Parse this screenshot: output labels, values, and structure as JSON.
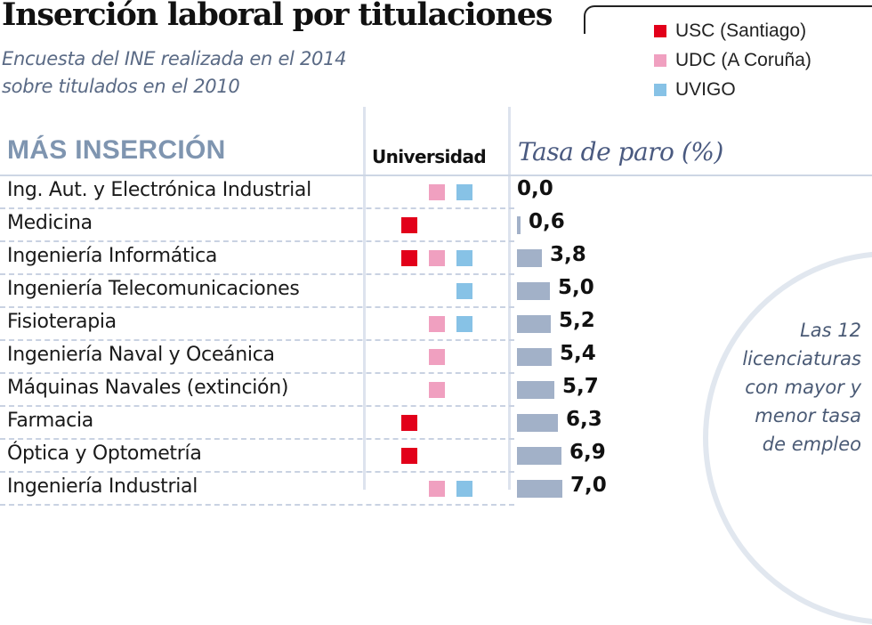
{
  "header": {
    "title": "Inserción laboral por titulaciones",
    "subtitle_lines": [
      "Encuesta del INE realizada en el 2014",
      "sobre titulados en el 2010"
    ]
  },
  "legend": [
    {
      "label": "USC (Santiago)",
      "key": "usc",
      "color": "#e2001a"
    },
    {
      "label": "UDC (A Coruña)",
      "key": "udc",
      "color": "#f0a0c0"
    },
    {
      "label": "UVIGO",
      "key": "uvigo",
      "color": "#87c2e6"
    }
  ],
  "table": {
    "section_title": "MÁS INSERCIÓN",
    "university_header": "Universidad",
    "rate_header": "Tasa de paro (%)"
  },
  "note": {
    "lines": [
      "Las 12",
      "licenciaturas",
      "con mayor y",
      "menor tasa",
      "de empleo"
    ]
  },
  "colors": {
    "usc": "#e2001a",
    "udc": "#f0a0c0",
    "uvigo": "#87c2e6",
    "bar": "#a2b1c8",
    "section_title": "#7f95b0"
  },
  "chart_data": {
    "type": "bar",
    "orientation": "horizontal",
    "title": "Inserción laboral por titulaciones",
    "subtitle": "Encuesta del INE realizada en el 2014 sobre titulados en el 2010",
    "xlabel": "Tasa de paro (%)",
    "ylabel": "",
    "section": "MÁS INSERCIÓN",
    "grid": false,
    "legend_position": "top-right",
    "categories": [
      "Ing. Aut. y Electrónica Industrial",
      "Medicina",
      "Ingeniería Informática",
      "Ingeniería Telecomunicaciones",
      "Fisioterapia",
      "Ingeniería Naval y Oceánica",
      "Máquinas Navales (extinción)",
      "Farmacia",
      "Óptica y Optometría",
      "Ingeniería Industrial"
    ],
    "values": [
      0.0,
      0.6,
      3.8,
      5.0,
      5.2,
      5.4,
      5.7,
      6.3,
      6.9,
      7.0
    ],
    "value_labels": [
      "0,0",
      "0,6",
      "3,8",
      "5,0",
      "5,2",
      "5,4",
      "5,7",
      "6,3",
      "6,9",
      "7,0"
    ],
    "universities": [
      [
        "udc",
        "uvigo"
      ],
      [
        "usc"
      ],
      [
        "usc",
        "udc",
        "uvigo"
      ],
      [
        "uvigo"
      ],
      [
        "udc",
        "uvigo"
      ],
      [
        "udc"
      ],
      [
        "udc"
      ],
      [
        "usc"
      ],
      [
        "usc"
      ],
      [
        "udc",
        "uvigo"
      ]
    ]
  }
}
